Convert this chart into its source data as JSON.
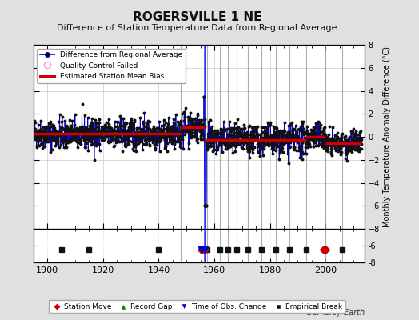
{
  "title": "ROGERSVILLE 1 NE",
  "subtitle": "Difference of Station Temperature Data from Regional Average",
  "ylabel": "Monthly Temperature Anomaly Difference (°C)",
  "xlim": [
    1895,
    2014
  ],
  "ylim": [
    -8,
    8
  ],
  "yticks": [
    -8,
    -6,
    -4,
    -2,
    0,
    2,
    4,
    6,
    8
  ],
  "xticks": [
    1900,
    1920,
    1940,
    1960,
    1980,
    2000
  ],
  "bg_color": "#e0e0e0",
  "plot_bg_color": "#ffffff",
  "seed": 42,
  "segments": [
    {
      "start": 1895.0,
      "end": 1948.0,
      "mean": 0.25,
      "std": 0.65
    },
    {
      "start": 1948.0,
      "end": 1956.42,
      "mean": 0.85,
      "std": 0.65
    },
    {
      "start": 1956.42,
      "end": 1993.0,
      "mean": -0.25,
      "std": 0.65
    },
    {
      "start": 1993.0,
      "end": 2000.0,
      "mean": 0.0,
      "std": 0.55
    },
    {
      "start": 2000.0,
      "end": 2013.0,
      "mean": -0.55,
      "std": 0.55
    }
  ],
  "bias_segments": [
    {
      "start": 1895.0,
      "end": 1948.0,
      "value": 0.25
    },
    {
      "start": 1948.0,
      "end": 1956.42,
      "value": 0.85
    },
    {
      "start": 1956.42,
      "end": 1993.0,
      "value": -0.25
    },
    {
      "start": 1993.0,
      "end": 2000.0,
      "value": 0.0
    },
    {
      "start": 2000.0,
      "end": 2013.0,
      "value": -0.55
    }
  ],
  "vertical_lines": [
    {
      "x": 1948.0,
      "color": "#999999",
      "lw": 0.8
    },
    {
      "x": 1956.42,
      "color": "#0000ff",
      "lw": 1.8
    },
    {
      "x": 1957.5,
      "color": "#999999",
      "lw": 0.8
    },
    {
      "x": 1962.0,
      "color": "#999999",
      "lw": 0.8
    },
    {
      "x": 1965.0,
      "color": "#999999",
      "lw": 0.8
    },
    {
      "x": 1968.0,
      "color": "#999999",
      "lw": 0.8
    },
    {
      "x": 1972.0,
      "color": "#999999",
      "lw": 0.8
    },
    {
      "x": 1977.0,
      "color": "#999999",
      "lw": 0.8
    },
    {
      "x": 1982.0,
      "color": "#999999",
      "lw": 0.8
    },
    {
      "x": 1987.0,
      "color": "#999999",
      "lw": 0.8
    },
    {
      "x": 1993.0,
      "color": "#999999",
      "lw": 0.8
    },
    {
      "x": 2000.0,
      "color": "#999999",
      "lw": 0.8
    },
    {
      "x": 2006.0,
      "color": "#999999",
      "lw": 0.8
    }
  ],
  "event_markers": {
    "station_move": [
      1955.5,
      1956.42,
      1999.5,
      2000.0
    ],
    "time_of_obs": [
      1955.5,
      1956.42
    ],
    "empirical_break": [
      1905.0,
      1915.0,
      1940.0,
      1957.5,
      1962.0,
      1965.0,
      1968.0,
      1972.0,
      1977.0,
      1982.0,
      1987.0,
      1993.0,
      2006.0
    ],
    "record_gap": []
  },
  "station_move_color": "#cc0000",
  "time_obs_color": "#0000cc",
  "empirical_break_color": "#111111",
  "record_gap_color": "#008800",
  "marker_y": -6.5,
  "data_line_color": "#0000cc",
  "data_marker_color": "#111111",
  "bias_line_color": "#cc0000",
  "grid_color": "#cccccc",
  "spike_up_x": 1956.25,
  "spike_up_y": 3.5,
  "spike_down_x": 1957.0,
  "spike_down_y": -6.0
}
